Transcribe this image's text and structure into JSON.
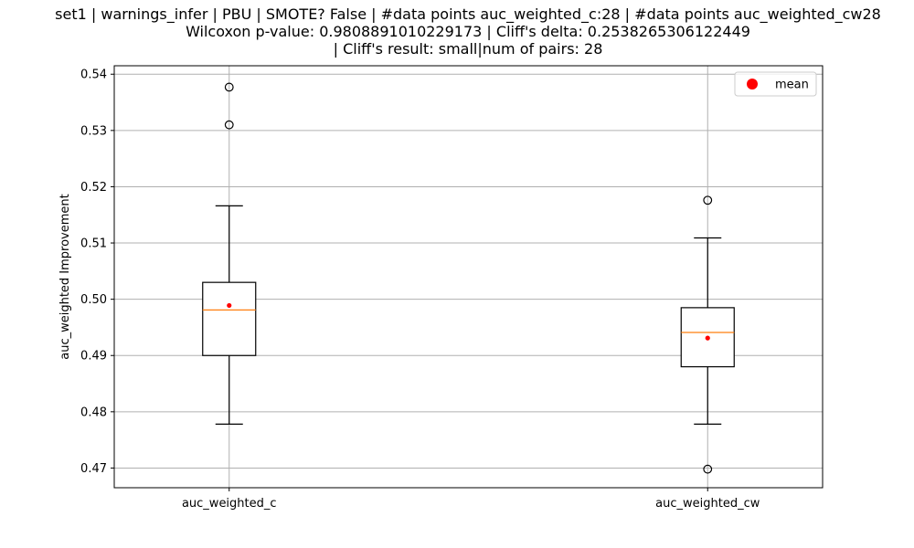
{
  "chart_data": {
    "type": "box",
    "title_lines": [
      "set1 | warnings_infer | PBU | SMOTE? False | #data points auc_weighted_c:28 | #data points auc_weighted_cw28",
      "Wilcoxon p-value: 0.9808891010229173 | Cliff's delta: 0.2538265306122449",
      "| Cliff's result: small|num of pairs: 28"
    ],
    "xlabel": "",
    "ylabel": "auc_weighted Improvement",
    "ylim": [
      0.4665,
      0.5415
    ],
    "yticks": [
      0.47,
      0.48,
      0.49,
      0.5,
      0.51,
      0.52,
      0.53,
      0.54
    ],
    "ytick_labels": [
      "0.47",
      "0.48",
      "0.49",
      "0.50",
      "0.51",
      "0.52",
      "0.53",
      "0.54"
    ],
    "grid": true,
    "legend": {
      "position": "top-right",
      "entries": [
        {
          "label": "mean",
          "marker": "circle",
          "color": "#ff0000"
        }
      ]
    },
    "colors": {
      "box": "#000000",
      "median": "#ff7f0e",
      "mean": "#ff0000",
      "grid": "#b0b0b0"
    },
    "categories": [
      "auc_weighted_c",
      "auc_weighted_cw"
    ],
    "boxes": [
      {
        "name": "auc_weighted_c",
        "whisker_low": 0.4778,
        "q1": 0.49,
        "median": 0.4981,
        "q3": 0.503,
        "whisker_high": 0.5166,
        "mean": 0.4989,
        "outliers": [
          0.531,
          0.5377
        ]
      },
      {
        "name": "auc_weighted_cw",
        "whisker_low": 0.4778,
        "q1": 0.488,
        "median": 0.4941,
        "q3": 0.4985,
        "whisker_high": 0.5109,
        "mean": 0.4931,
        "outliers": [
          0.5176,
          0.4698
        ]
      }
    ]
  }
}
